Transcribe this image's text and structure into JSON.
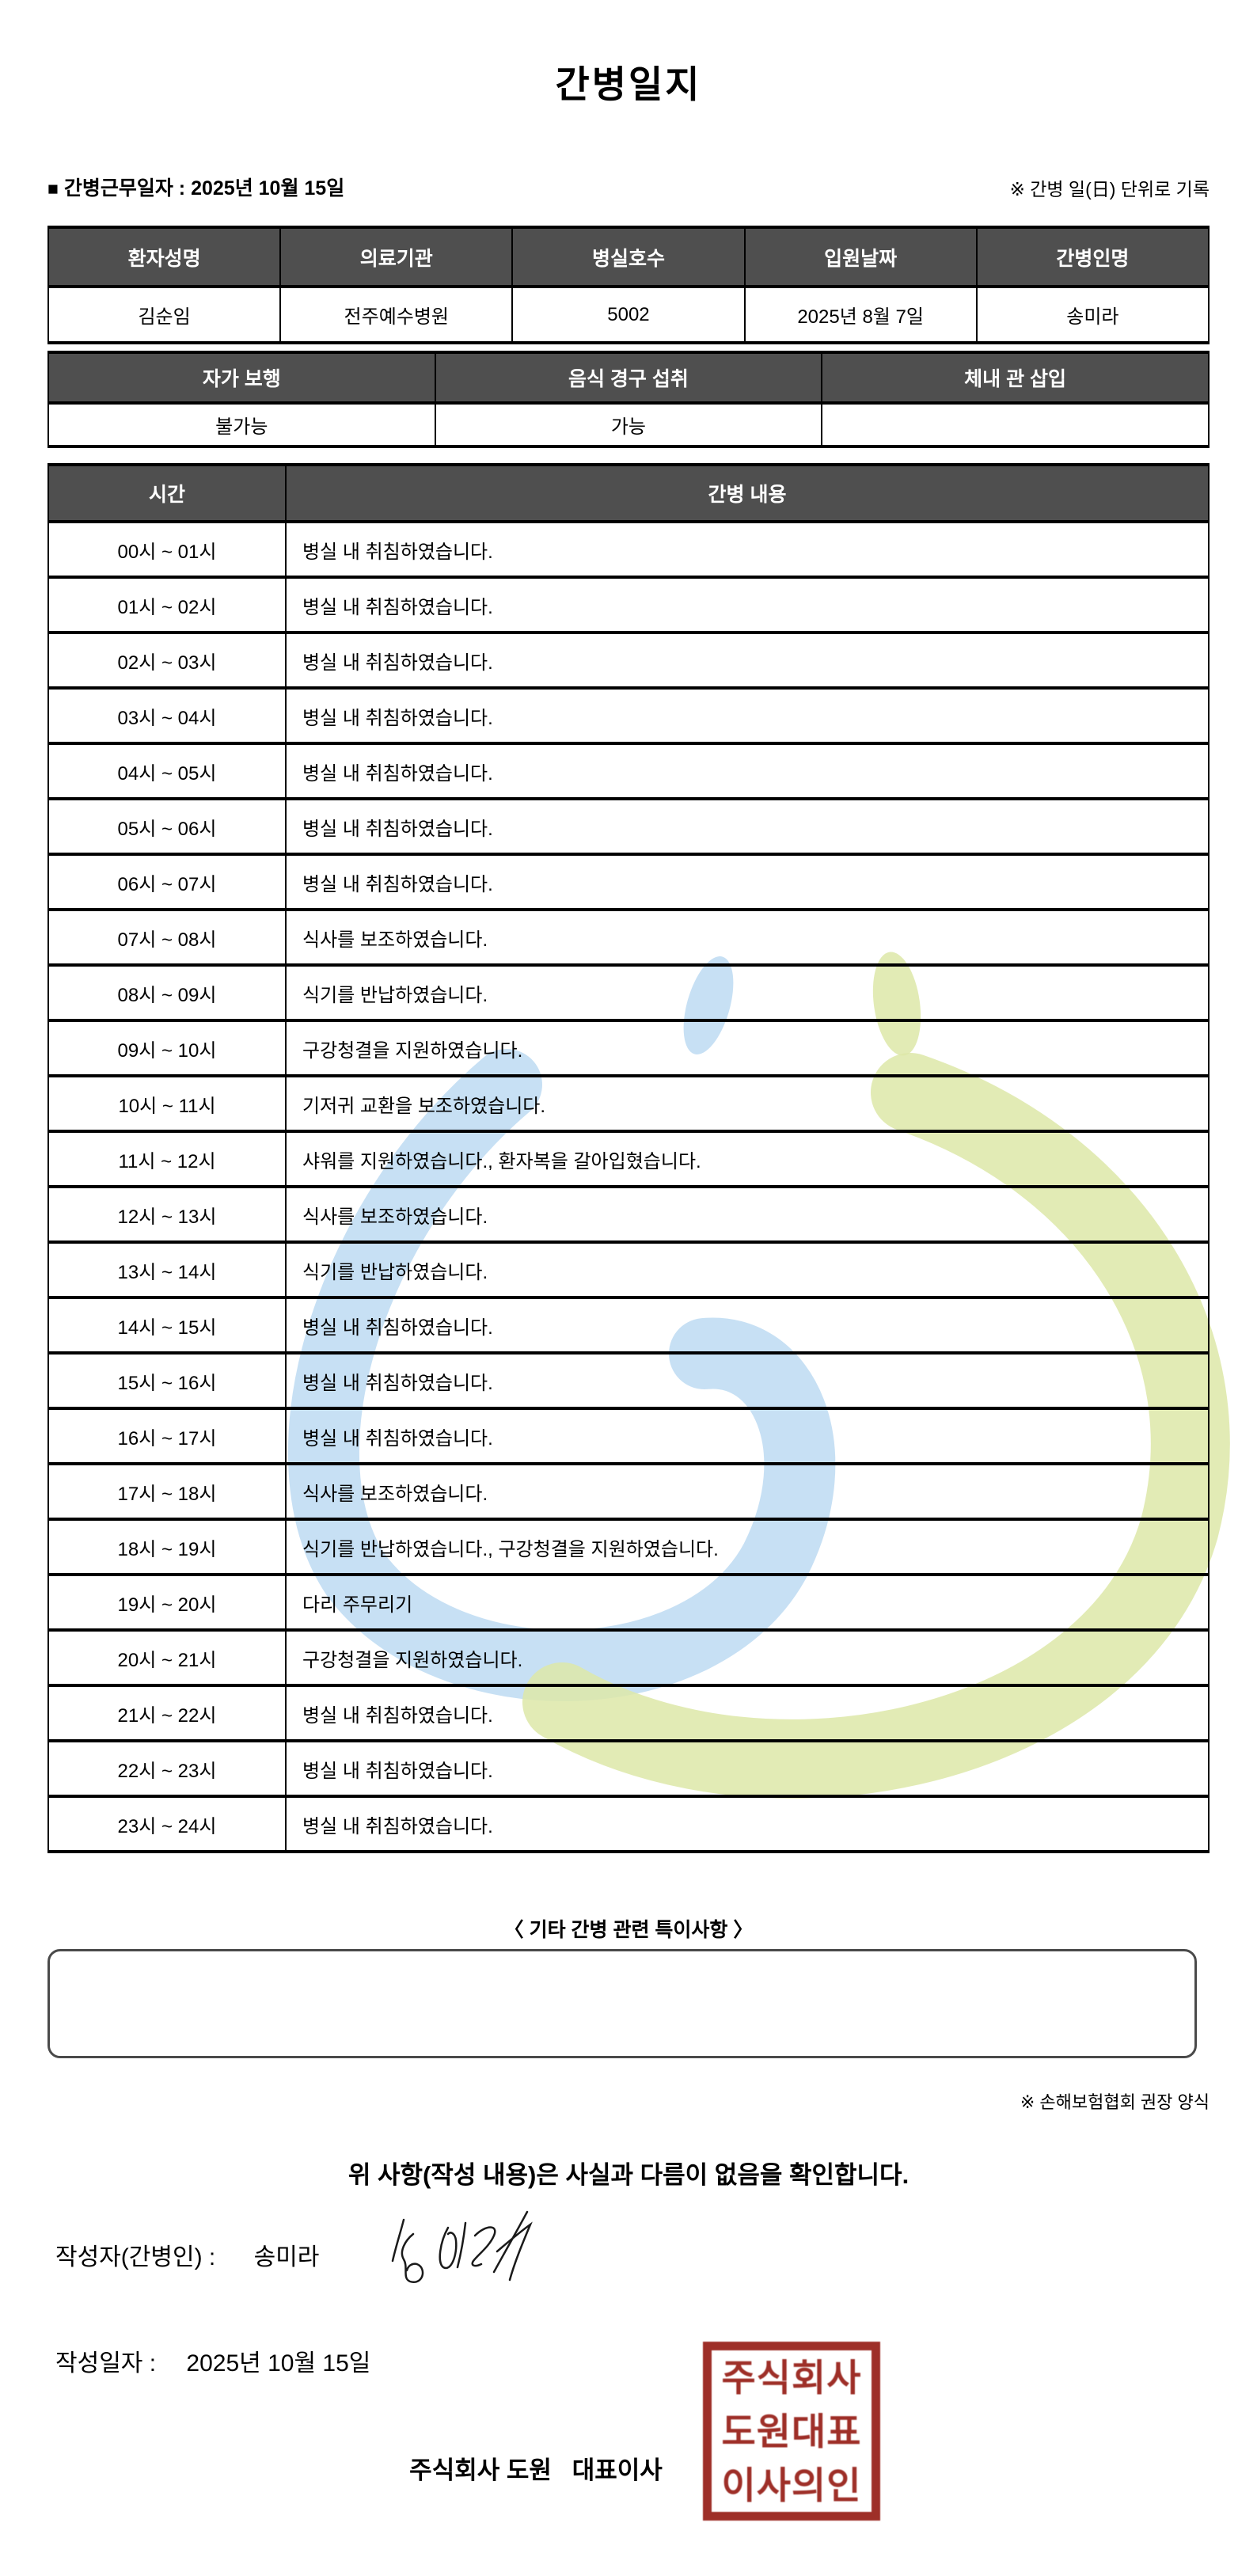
{
  "title": "간병일지",
  "meta": {
    "square_icon": "■",
    "work_date_label": "간병근무일자 :",
    "work_date_value": "2025년 10월 15일",
    "unit_note": "※ 간병 일(日) 단위로 기록"
  },
  "patient_table": {
    "headers": [
      "환자성명",
      "의료기관",
      "병실호수",
      "입원날짜",
      "간병인명"
    ],
    "values": [
      "김순임",
      "전주예수병원",
      "5002",
      "2025년 8월 7일",
      "송미라"
    ]
  },
  "status_table": {
    "headers": [
      "자가 보행",
      "음식 경구 섭취",
      "체내 관 삽입"
    ],
    "values": [
      "불가능",
      "가능",
      ""
    ]
  },
  "log_table": {
    "headers": [
      "시간",
      "간병 내용"
    ],
    "rows": [
      {
        "time": "00시 ~ 01시",
        "content": "병실 내 취침하였습니다."
      },
      {
        "time": "01시 ~ 02시",
        "content": "병실 내 취침하였습니다."
      },
      {
        "time": "02시 ~ 03시",
        "content": "병실 내 취침하였습니다."
      },
      {
        "time": "03시 ~ 04시",
        "content": "병실 내 취침하였습니다."
      },
      {
        "time": "04시 ~ 05시",
        "content": "병실 내 취침하였습니다."
      },
      {
        "time": "05시 ~ 06시",
        "content": "병실 내 취침하였습니다."
      },
      {
        "time": "06시 ~ 07시",
        "content": "병실 내 취침하였습니다."
      },
      {
        "time": "07시 ~ 08시",
        "content": "식사를 보조하였습니다."
      },
      {
        "time": "08시 ~ 09시",
        "content": "식기를 반납하였습니다."
      },
      {
        "time": "09시 ~ 10시",
        "content": "구강청결을 지원하였습니다."
      },
      {
        "time": "10시 ~ 11시",
        "content": "기저귀 교환을 보조하였습니다."
      },
      {
        "time": "11시 ~ 12시",
        "content": "샤워를 지원하였습니다., 환자복을 갈아입혔습니다."
      },
      {
        "time": "12시 ~ 13시",
        "content": "식사를 보조하였습니다."
      },
      {
        "time": "13시 ~ 14시",
        "content": "식기를 반납하였습니다."
      },
      {
        "time": "14시 ~ 15시",
        "content": "병실 내 취침하였습니다."
      },
      {
        "time": "15시 ~ 16시",
        "content": "병실 내 취침하였습니다."
      },
      {
        "time": "16시 ~ 17시",
        "content": "병실 내 취침하였습니다."
      },
      {
        "time": "17시 ~ 18시",
        "content": "식사를 보조하였습니다."
      },
      {
        "time": "18시 ~ 19시",
        "content": "식기를 반납하였습니다., 구강청결을 지원하였습니다."
      },
      {
        "time": "19시 ~ 20시",
        "content": "다리 주무리기"
      },
      {
        "time": "20시 ~ 21시",
        "content": "구강청결을 지원하였습니다."
      },
      {
        "time": "21시 ~ 22시",
        "content": "병실 내 취침하였습니다."
      },
      {
        "time": "22시 ~ 23시",
        "content": "병실 내 취침하였습니다."
      },
      {
        "time": "23시 ~ 24시",
        "content": "병실 내 취침하였습니다."
      }
    ]
  },
  "notes": {
    "title": "〈 기타 간병 관련 특이사항 〉",
    "content": "",
    "form_note": "※ 손해보험협회 권장 양식"
  },
  "confirmation": "위 사항(작성 내용)은 사실과 다름이 없음을 확인합니다.",
  "footer": {
    "writer_label": "작성자(간병인) :",
    "writer_name": "송미라",
    "date_label": "작성일자 :",
    "date_value": "2025년 10월 15일",
    "company_line": "주식회사 도원   대표이사",
    "seal_lines": [
      "주식회사",
      "도원대표",
      "이사의인"
    ]
  },
  "colors": {
    "table_header_bg": "#4f4f4f",
    "border_black": "#000000",
    "seal_red": "#9e2f28",
    "watermark_blue": "#b9d8f1",
    "watermark_green": "#dde8a8"
  }
}
